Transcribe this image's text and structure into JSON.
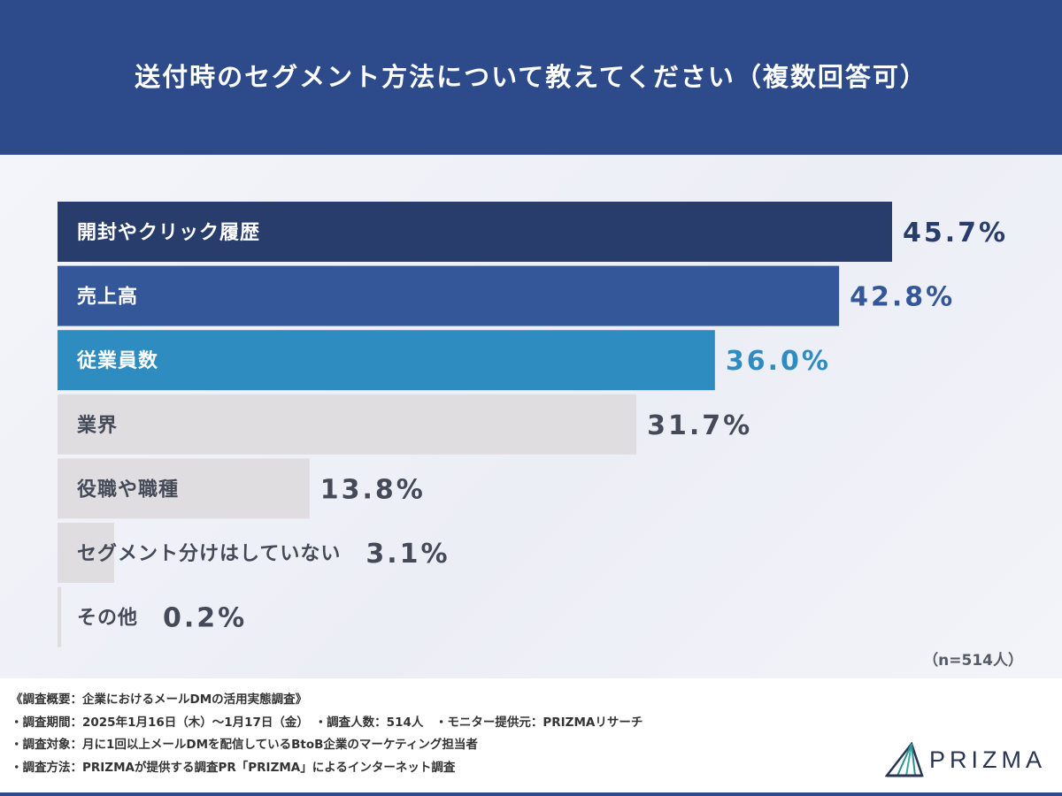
{
  "header": {
    "title": "送付時のセグメント方法について教えてください（複数回答可）"
  },
  "chart_data": {
    "type": "bar",
    "orientation": "horizontal",
    "title": "送付時のセグメント方法について教えてください（複数回答可）",
    "categories": [
      "開封やクリック履歴",
      "売上高",
      "従業員数",
      "業界",
      "役職や職種",
      "セグメント分けはしていない",
      "その他"
    ],
    "values": [
      45.7,
      42.8,
      36.0,
      31.7,
      13.8,
      3.1,
      0.2
    ],
    "value_labels": [
      "45.7%",
      "42.8%",
      "36.0%",
      "31.7%",
      "13.8%",
      "3.1%",
      "0.2%"
    ],
    "unit": "%",
    "xlim": [
      0,
      45.7
    ],
    "grid": false,
    "bar_colors": [
      "#283d6b",
      "#34579a",
      "#2f8cc0",
      "#dfdde0",
      "#dfdde0",
      "#dfdde0",
      "#dfdde0"
    ],
    "label_colors": [
      "#ffffff",
      "#ffffff",
      "#ffffff",
      "#444a58",
      "#444a58",
      "#444a58",
      "#444a58"
    ],
    "value_colors": [
      "#283d6b",
      "#34579a",
      "#2f8cc0",
      "#444a58",
      "#444a58",
      "#444a58",
      "#444a58"
    ],
    "sample_size": "（n=514人）"
  },
  "footer": {
    "lines": [
      "《調査概要：企業におけるメールDMの活用実態調査》",
      "・調査期間：2025年1月16日（木）～1月17日（金）　・調査人数：514人　・モニター提供元：PRIZMAリサーチ",
      "・調査対象：月に1回以上メールDMを配信しているBtoB企業のマーケティング担当者",
      "・調査方法：PRIZMAが提供する調査PR「PRIZMA」によるインターネット調査"
    ]
  },
  "logo": {
    "text": "PRIZMA",
    "icon": "prizma-logo-icon",
    "color": "#2a3555",
    "accent": "#2f8f8f"
  }
}
